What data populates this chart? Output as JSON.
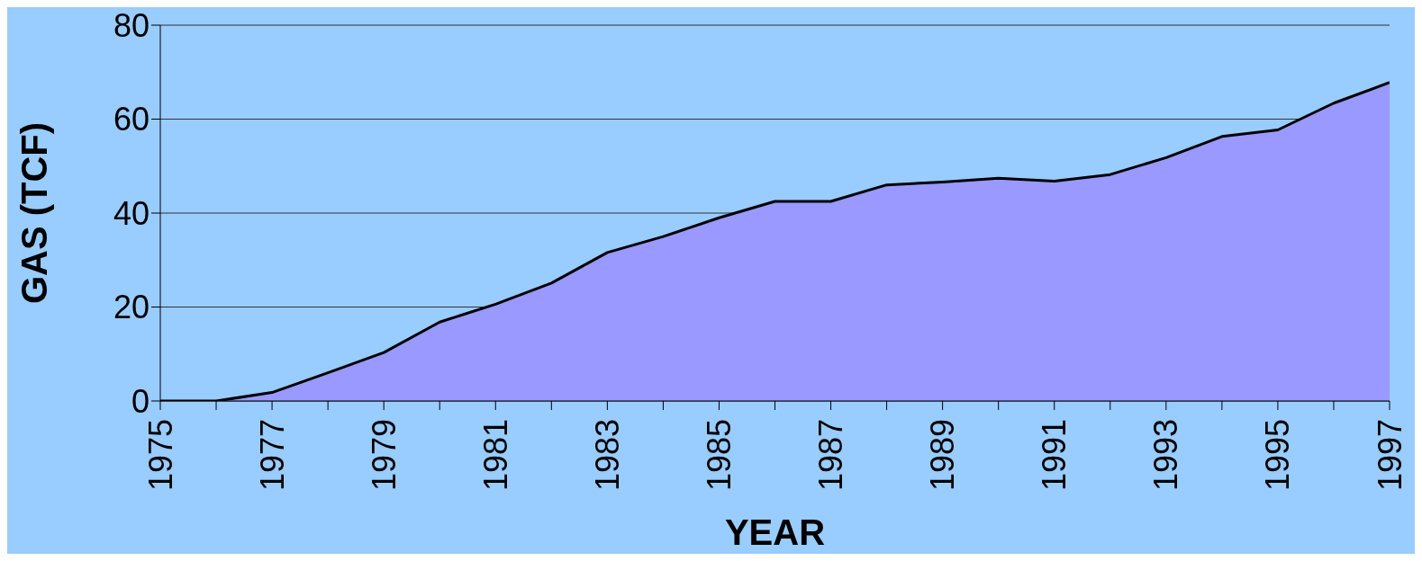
{
  "chart_data": {
    "type": "area",
    "xlabel": "YEAR",
    "ylabel": "GAS (TCF)",
    "x": [
      1975,
      1976,
      1977,
      1978,
      1979,
      1980,
      1981,
      1982,
      1983,
      1984,
      1985,
      1986,
      1987,
      1988,
      1989,
      1990,
      1991,
      1992,
      1993,
      1994,
      1995,
      1996,
      1997
    ],
    "series": [
      {
        "color": "#9999ff",
        "values": [
          0,
          0,
          1.8,
          6,
          10.3,
          16.8,
          20.6,
          25.1,
          31.6,
          35,
          39,
          42.5,
          42.5,
          46,
          46.6,
          47.4,
          46.8,
          48.2,
          51.8,
          56.3,
          57.7,
          63.4,
          67.8
        ]
      }
    ],
    "xlim": [
      1975,
      1997
    ],
    "xticks": [
      1975,
      {
        "value": 1976,
        "label": null
      },
      1977,
      {
        "value": 1978,
        "label": null
      },
      1979,
      {
        "value": 1980,
        "label": null
      },
      1981,
      {
        "value": 1982,
        "label": null
      },
      1983,
      {
        "value": 1984,
        "label": null
      },
      1985,
      {
        "value": 1986,
        "label": null
      },
      1987,
      {
        "value": 1988,
        "label": null
      },
      1989,
      {
        "value": 1990,
        "label": null
      },
      1991,
      {
        "value": 1992,
        "label": null
      },
      1993,
      {
        "value": 1994,
        "label": null
      },
      1995,
      {
        "value": 1996,
        "label": null
      },
      1997
    ],
    "ylim": [
      0,
      80
    ],
    "yticks": [
      0,
      20,
      40,
      60,
      80
    ],
    "grid": "y",
    "legend": false,
    "marker": "none",
    "line_style": "solid"
  }
}
